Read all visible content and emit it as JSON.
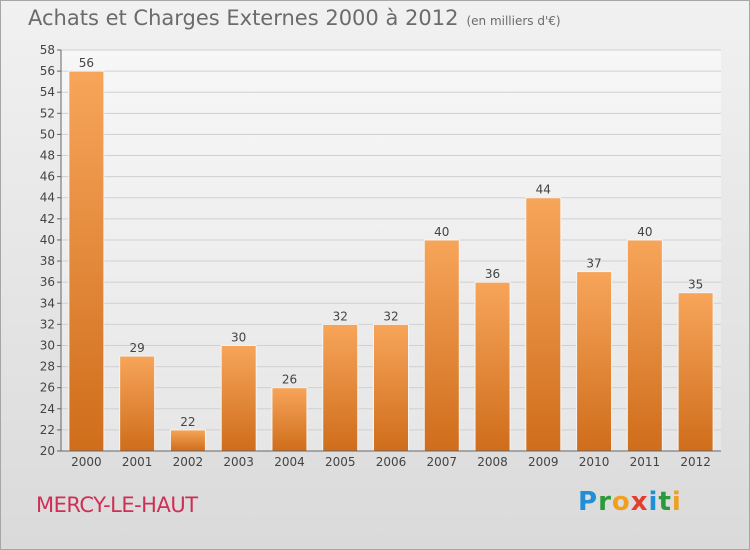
{
  "header": {
    "title": "Achats et Charges Externes 2000 à 2012",
    "unit": "(en milliers d'€)"
  },
  "footer": {
    "city": "MERCY-LE-HAUT",
    "logo_text": "Proxiti"
  },
  "colors": {
    "bar_top": "#f7a55a",
    "bar_bottom": "#cf6d1b",
    "city": "#cf2f54"
  },
  "chart_data": {
    "type": "bar",
    "title": "Achats et Charges Externes 2000 à 2012",
    "categories": [
      "2000",
      "2001",
      "2002",
      "2003",
      "2004",
      "2005",
      "2006",
      "2007",
      "2008",
      "2009",
      "2010",
      "2011",
      "2012"
    ],
    "values": [
      56,
      29,
      22,
      30,
      26,
      32,
      32,
      40,
      36,
      44,
      37,
      40,
      35
    ],
    "ylim": [
      20,
      58
    ],
    "yticks": [
      20,
      22,
      24,
      26,
      28,
      30,
      32,
      34,
      36,
      38,
      40,
      42,
      44,
      46,
      48,
      50,
      52,
      54,
      56,
      58
    ],
    "grid": true,
    "xlabel": "",
    "ylabel": ""
  }
}
